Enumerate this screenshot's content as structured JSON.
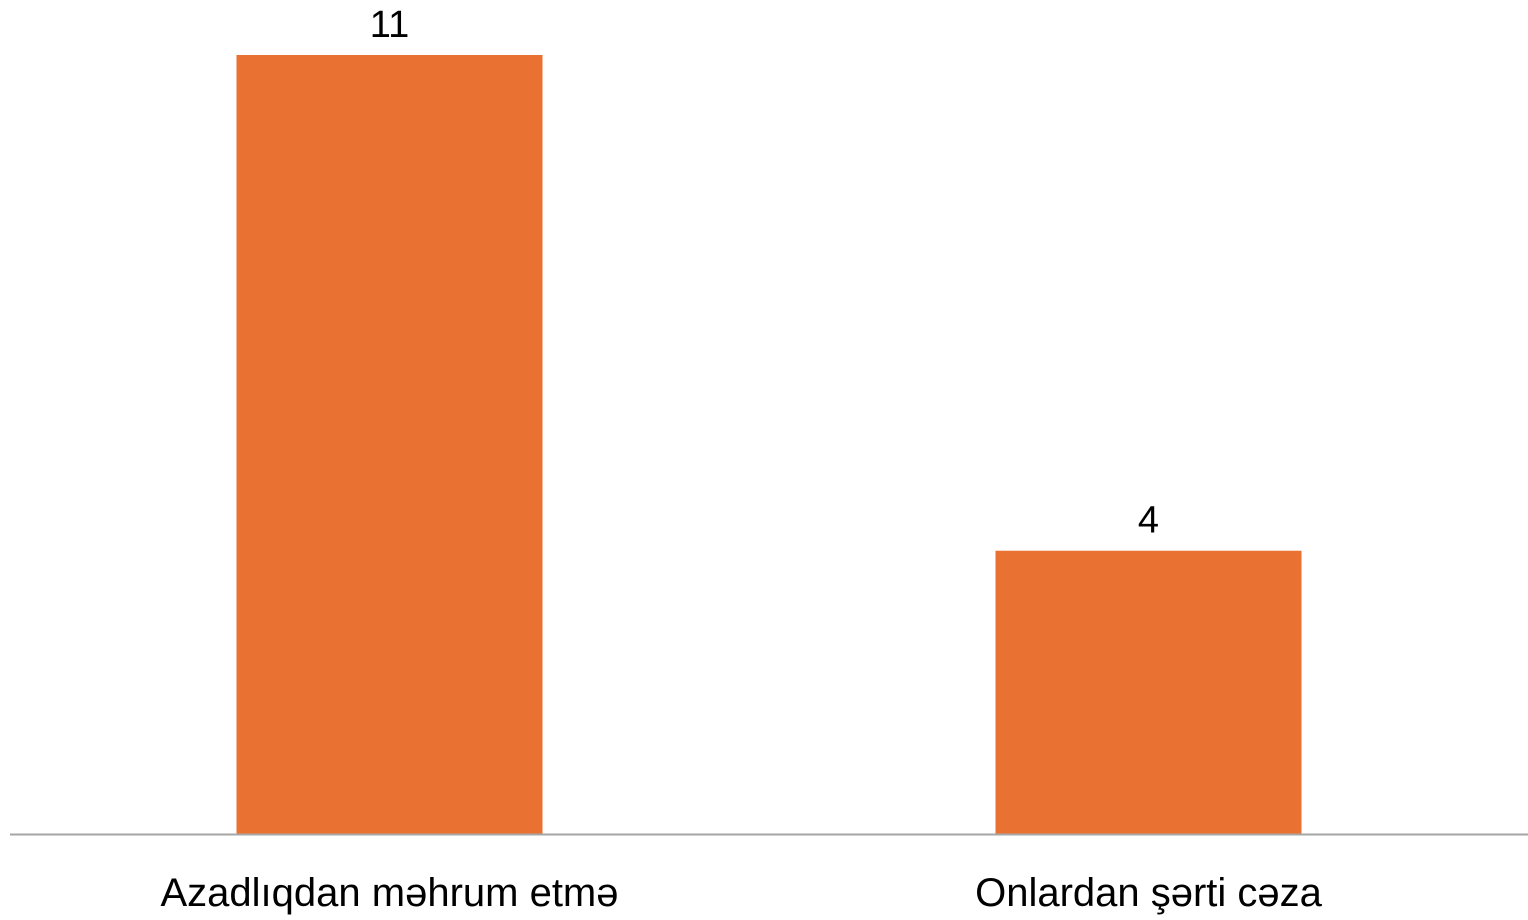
{
  "chart_data": {
    "type": "bar",
    "categories": [
      "Azadlıqdan məhrum etmə",
      "Onlardan şərti cəza"
    ],
    "values": [
      11,
      4
    ],
    "data_labels": [
      "11",
      "4"
    ],
    "title": "",
    "xlabel": "",
    "ylabel": "",
    "ylim": [
      0,
      11
    ],
    "grid": false,
    "legend": "none",
    "colors": {
      "bar": "#E97132",
      "axis": "#A6A6A6"
    }
  }
}
